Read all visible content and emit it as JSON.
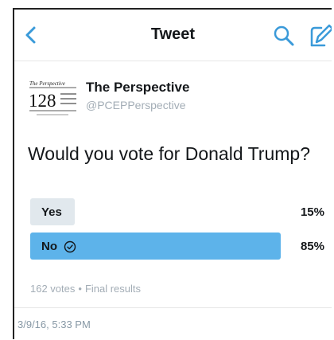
{
  "navbar": {
    "title": "Tweet",
    "back_icon": "chevron-left-icon",
    "search_icon": "search-icon",
    "compose_icon": "compose-icon",
    "accent_color": "#3a9ad9"
  },
  "tweet": {
    "author": {
      "name": "The Perspective",
      "handle": "@PCEPPerspective",
      "avatar_icon": "the-perspective-128-logo"
    },
    "text": "Would you vote for Donald Trump?",
    "poll": {
      "options": [
        {
          "label": "Yes",
          "percent_label": "15%",
          "percent": 15,
          "selected": false,
          "bar_color": "#e1e8ed"
        },
        {
          "label": "No",
          "percent_label": "85%",
          "percent": 85,
          "selected": true,
          "bar_color": "#5db3ea"
        }
      ],
      "votes": "162 votes",
      "separator": "•",
      "status": "Final results"
    },
    "timestamp": "3/9/16, 5:33 PM"
  }
}
